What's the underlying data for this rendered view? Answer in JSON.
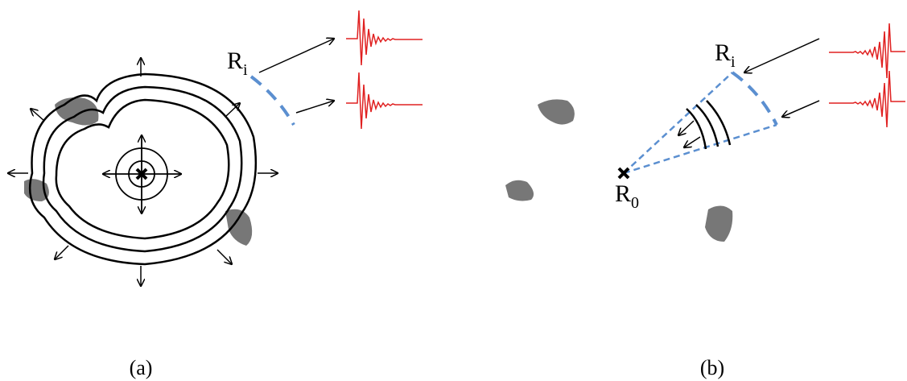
{
  "panels": [
    {
      "caption": "(a)",
      "receiver_label": {
        "main": "R",
        "sub": "i"
      }
    },
    {
      "caption": "(b)",
      "receiver_label": {
        "main": "R",
        "sub": "i"
      },
      "source_label": {
        "main": "R",
        "sub": "0"
      }
    }
  ]
}
